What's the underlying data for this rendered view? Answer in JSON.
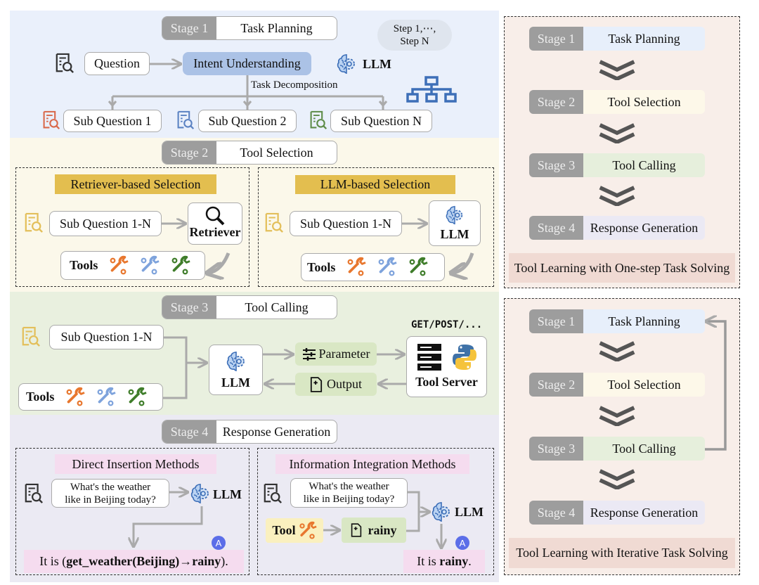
{
  "colors": {
    "stage1_bg": "#eaf0fb",
    "stage2_bg": "#fbf8ea",
    "stage3_bg": "#e9f0df",
    "stage4_bg": "#ebeaf3",
    "stage_gray": "#9d9d9d",
    "intent": "#abc2e6",
    "selection_label": "#e3be4f",
    "method_label": "#f5dcef",
    "green_box": "#d9e7c4",
    "tool_yellow": "#faf0bf",
    "panel_bg": "#f8eee9",
    "caption_bg": "#f0dad3",
    "wrench_orange": "#e8772e",
    "wrench_blue": "#7ea3dc",
    "wrench_green": "#3f7d2a"
  },
  "stage1": {
    "stage": "Stage 1",
    "title": "Task Planning",
    "question": "Question",
    "intent": "Intent Understanding",
    "llm": "LLM",
    "cloud_line1": "Step 1,⋯,",
    "cloud_line2": "Step N",
    "decomposition": "Task Decomposition",
    "sub_questions": [
      "Sub Question 1",
      "Sub Question 2",
      "Sub Question N"
    ]
  },
  "stage2": {
    "stage": "Stage 2",
    "title": "Tool Selection",
    "retriever_label": "Retriever-based Selection",
    "llm_label": "LLM-based Selection",
    "sub_question": "Sub Question 1-N",
    "retriever": "Retriever",
    "llm": "LLM",
    "tools": "Tools"
  },
  "stage3": {
    "stage": "Stage 3",
    "title": "Tool Calling",
    "sub_question": "Sub Question 1-N",
    "tools": "Tools",
    "llm": "LLM",
    "parameter": "Parameter",
    "output": "Output",
    "methods": "GET/POST/...",
    "server": "Tool Server"
  },
  "stage4": {
    "stage": "Stage 4",
    "title": "Response Generation",
    "direct_label": "Direct Insertion Methods",
    "integration_label": "Information Integration Methods",
    "question_line1": "What's the weather",
    "question_line2": "like in Beijing today?",
    "llm": "LLM",
    "badge": "A",
    "direct_answer_prefix": "It is (",
    "direct_answer_bold": "get_weather(Beijing)→rainy",
    "direct_answer_suffix": ").",
    "tool": "Tool",
    "rainy": "rainy",
    "integ_answer_prefix": "It is ",
    "integ_answer_bold": "rainy",
    "integ_answer_suffix": "."
  },
  "one_step": {
    "stages": [
      {
        "stage": "Stage 1",
        "title": "Task Planning"
      },
      {
        "stage": "Stage 2",
        "title": "Tool Selection"
      },
      {
        "stage": "Stage 3",
        "title": "Tool Calling"
      },
      {
        "stage": "Stage 4",
        "title": "Response Generation"
      }
    ],
    "caption": "Tool Learning with One-step Task Solving"
  },
  "iterative": {
    "stages": [
      {
        "stage": "Stage 1",
        "title": "Task Planning"
      },
      {
        "stage": "Stage 2",
        "title": "Tool Selection"
      },
      {
        "stage": "Stage 3",
        "title": "Tool Calling"
      },
      {
        "stage": "Stage 4",
        "title": "Response Generation"
      }
    ],
    "caption": "Tool Learning with Iterative Task Solving"
  }
}
